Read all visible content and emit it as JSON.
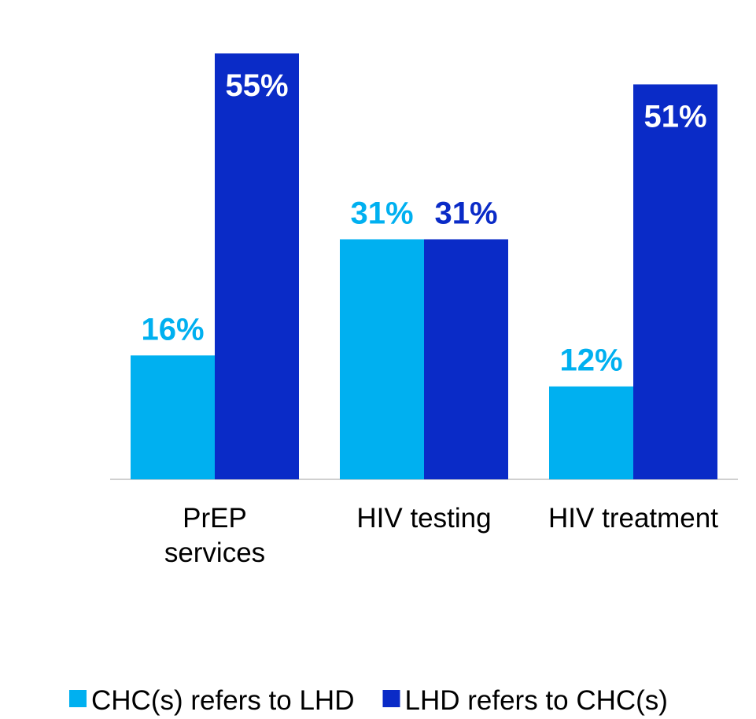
{
  "chart_data": {
    "type": "bar",
    "categories": [
      "PrEP\nservices",
      "HIV testing",
      "HIV treatment"
    ],
    "series": [
      {
        "name": "CHC(s) refers to LHD",
        "color": "#00b0f0",
        "values": [
          16,
          31,
          12
        ],
        "value_labels": [
          "16%",
          "31%",
          "12%"
        ]
      },
      {
        "name": "LHD refers to CHC(s)",
        "color": "#0a2bc7",
        "values": [
          55,
          31,
          51
        ],
        "value_labels": [
          "55%",
          "31%",
          "51%"
        ]
      }
    ]
  }
}
